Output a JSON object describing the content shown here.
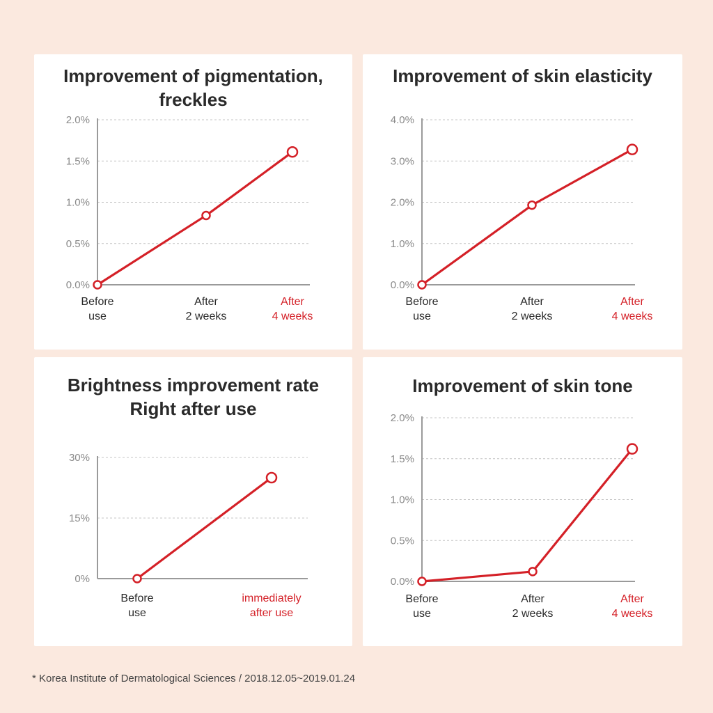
{
  "colors": {
    "background": "#fbe9df",
    "card": "#ffffff",
    "accent": "#d42027",
    "axis": "#9a9a9a",
    "grid": "#c4c4c4",
    "text": "#2a2a2a",
    "tick": "#8a8a8a"
  },
  "chart_data": [
    {
      "type": "line",
      "title": "Improvement of pigmentation,\nfreckles",
      "categories": [
        "Before\nuse",
        "After\n2 weeks",
        "After\n4 weeks"
      ],
      "highlight_category": 2,
      "series": [
        {
          "values": [
            0.0,
            0.84,
            1.61
          ]
        }
      ],
      "y_ticks": [
        "0.0%",
        "0.5%",
        "1.0%",
        "1.5%",
        "2.0%"
      ],
      "ylim": [
        0,
        2.0
      ],
      "grid": true
    },
    {
      "type": "line",
      "title": "Improvement of skin elasticity",
      "categories": [
        "Before\nuse",
        "After\n2 weeks",
        "After\n4 weeks"
      ],
      "highlight_category": 2,
      "series": [
        {
          "values": [
            0.0,
            1.93,
            3.28
          ]
        }
      ],
      "y_ticks": [
        "0.0%",
        "1.0%",
        "2.0%",
        "3.0%",
        "4.0%"
      ],
      "ylim": [
        0,
        4.0
      ],
      "grid": true
    },
    {
      "type": "line",
      "title": "Brightness improvement rate\nRight after use",
      "categories": [
        "Before\nuse",
        "immediately\nafter use"
      ],
      "highlight_category": 1,
      "series": [
        {
          "values": [
            0,
            25
          ]
        }
      ],
      "y_ticks": [
        "0%",
        "15%",
        "30%"
      ],
      "ylim": [
        0,
        30
      ],
      "grid": true
    },
    {
      "type": "line",
      "title": "Improvement of skin tone",
      "categories": [
        "Before\nuse",
        "After\n2 weeks",
        "After\n4 weeks"
      ],
      "highlight_category": 2,
      "series": [
        {
          "values": [
            0.0,
            0.12,
            1.62
          ]
        }
      ],
      "y_ticks": [
        "0.0%",
        "0.5%",
        "1.0%",
        "1.5%",
        "2.0%"
      ],
      "ylim": [
        0,
        2.0
      ],
      "grid": true
    }
  ],
  "footnote": "* Korea Institute of Dermatological Sciences / 2018.12.05~2019.01.24"
}
